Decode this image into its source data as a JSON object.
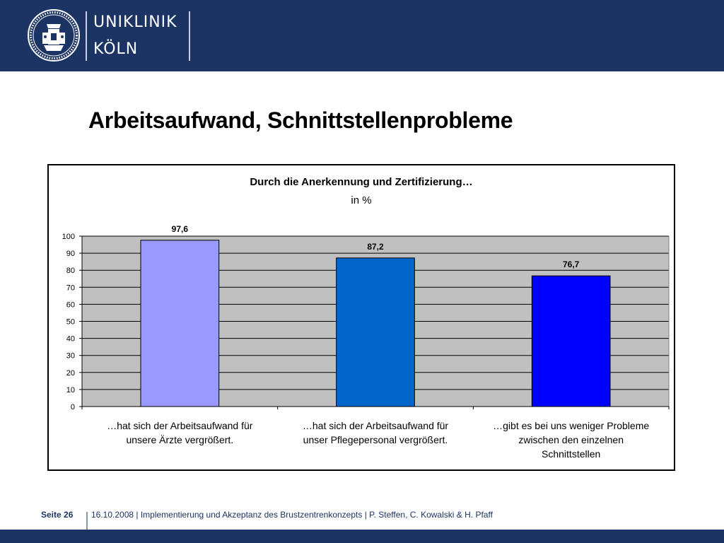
{
  "header": {
    "brand_line1": "UNIKLINIK",
    "brand_line2": "KÖLN"
  },
  "slide": {
    "title": "Arbeitsaufwand, Schnittstellenprobleme"
  },
  "chart_data": {
    "type": "bar",
    "title": "Durch die Anerkennung und Zertifizierung…",
    "subtitle": "in %",
    "categories": [
      "…hat sich der Arbeitsaufwand für unsere Ärzte vergrößert.",
      "…hat sich der Arbeitsaufwand für unser Pflegepersonal vergrößert.",
      "…gibt es bei uns weniger Probleme zwischen den einzelnen Schnittstellen"
    ],
    "category_lines": [
      [
        "…hat sich der Arbeitsaufwand für",
        "unsere Ärzte vergrößert."
      ],
      [
        "…hat sich der Arbeitsaufwand für",
        "unser Pflegepersonal vergrößert."
      ],
      [
        "…gibt es bei uns weniger Probleme",
        "zwischen den einzelnen",
        "Schnittstellen"
      ]
    ],
    "values": [
      97.6,
      87.2,
      76.7
    ],
    "data_labels": [
      "97,6",
      "87,2",
      "76,7"
    ],
    "bar_colors": [
      "#9999ff",
      "#0066cc",
      "#0000ff"
    ],
    "plot_background": "#c0c0c0",
    "ylim": [
      0,
      100
    ],
    "yticks": [
      0,
      10,
      20,
      30,
      40,
      50,
      60,
      70,
      80,
      90,
      100
    ],
    "grid": true,
    "legend": "none"
  },
  "footer": {
    "page": "Seite 26",
    "text": "16.10.2008 | Implementierung und Akzeptanz des Brustzentrenkonzepts | P. Steffen, C. Kowalski & H. Pfaff"
  },
  "colors": {
    "brand_blue": "#1b3464"
  }
}
